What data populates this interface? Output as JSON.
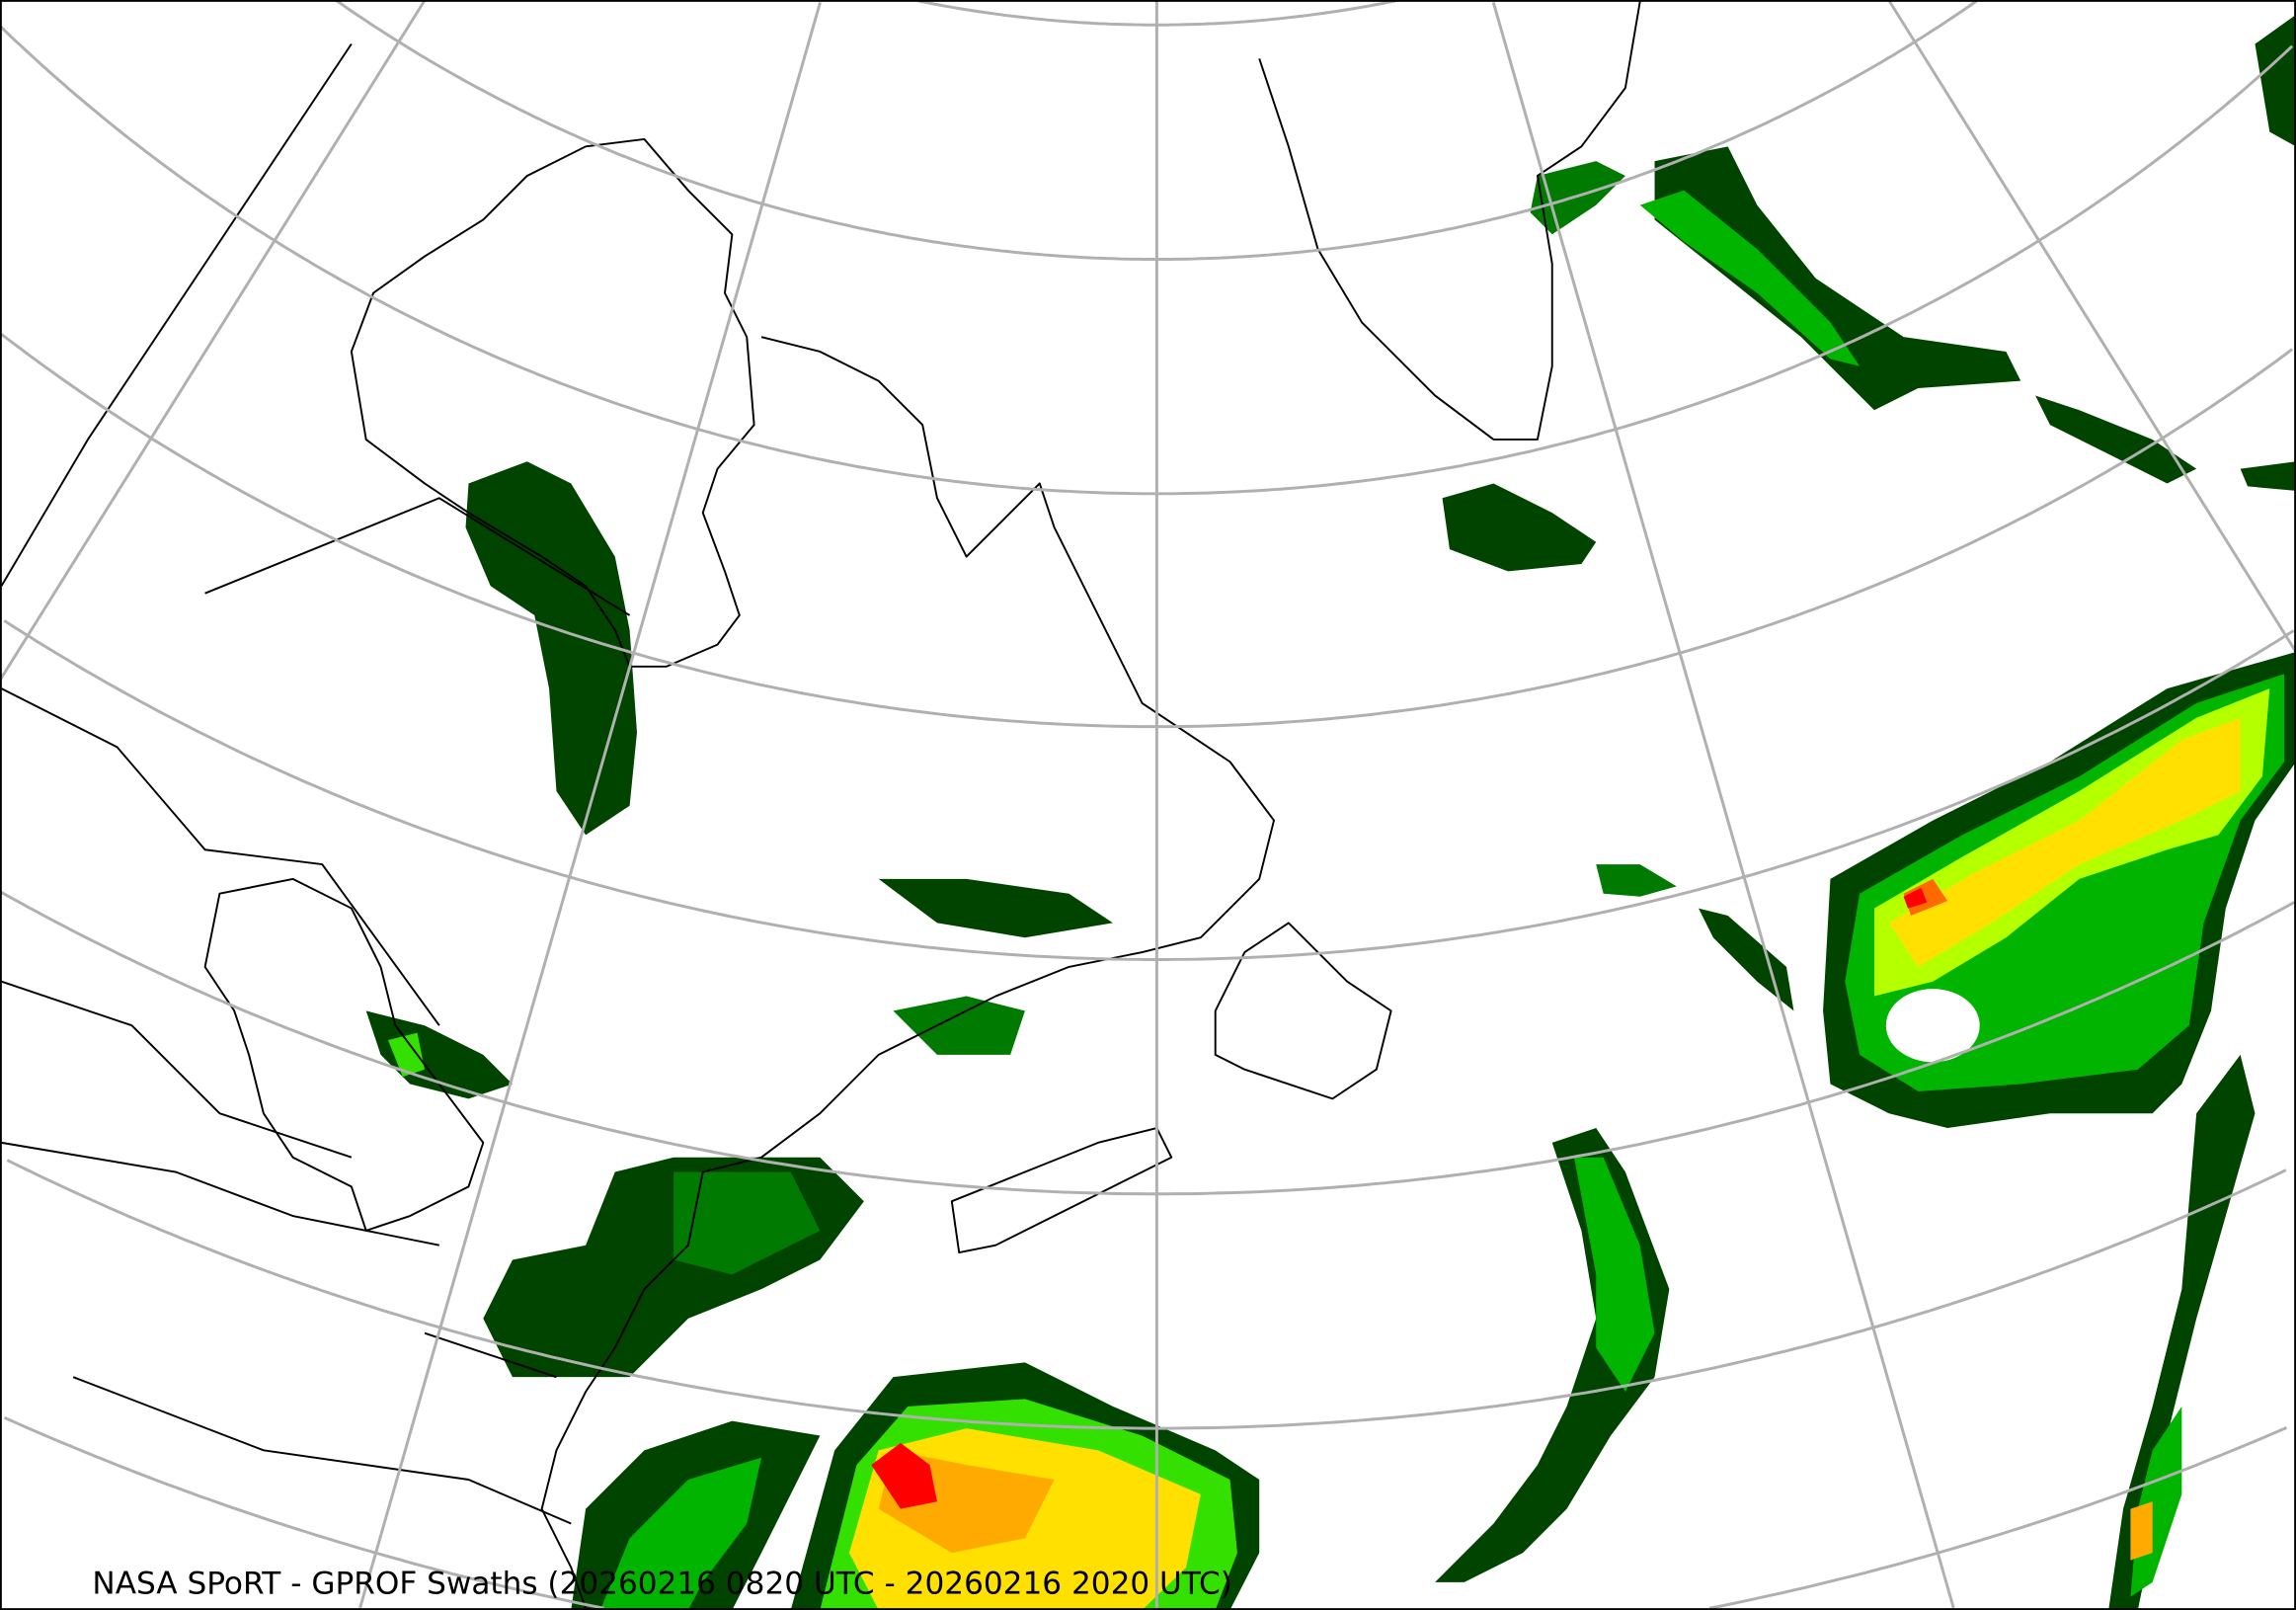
{
  "caption": "NASA SPoRT - GPROF Swaths (20260216 0820 UTC - 20260216 2020 UTC)",
  "colors": {
    "background": "#ffffff",
    "graticule": "#b0b0b0",
    "coastline": "#000000",
    "precip_levels": [
      "#004400",
      "#007a00",
      "#00b400",
      "#33e000",
      "#b4ff00",
      "#ffe000",
      "#ffaa00",
      "#ff6a00",
      "#ff0000"
    ]
  }
}
